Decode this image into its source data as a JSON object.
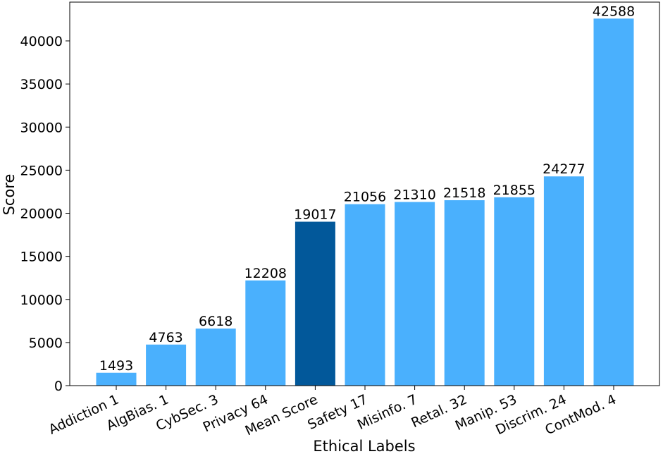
{
  "chart_data": {
    "type": "bar",
    "xlabel": "Ethical Labels",
    "ylabel": "Score",
    "ylim": [
      0,
      44500
    ],
    "yticks": [
      0,
      5000,
      10000,
      15000,
      20000,
      25000,
      30000,
      35000,
      40000
    ],
    "categories": [
      "Addiction 1",
      "AlgBias. 1",
      "CybSec. 3",
      "Privacy 64",
      "Mean Score",
      "Safety 17",
      "Misinfo. 7",
      "Retal. 32",
      "Manip. 53",
      "Discrim. 24",
      "ContMod. 4"
    ],
    "values": [
      1493,
      4763,
      6618,
      12208,
      19017,
      21056,
      21310,
      21518,
      21855,
      24277,
      42588
    ],
    "highlight_category": "Mean Score",
    "colors": {
      "bar": "#4ab0fd",
      "highlight_bar": "#02589a",
      "axis": "#000000"
    },
    "grid": false,
    "legend": "none",
    "x_tick_rotation_deg": 25
  }
}
